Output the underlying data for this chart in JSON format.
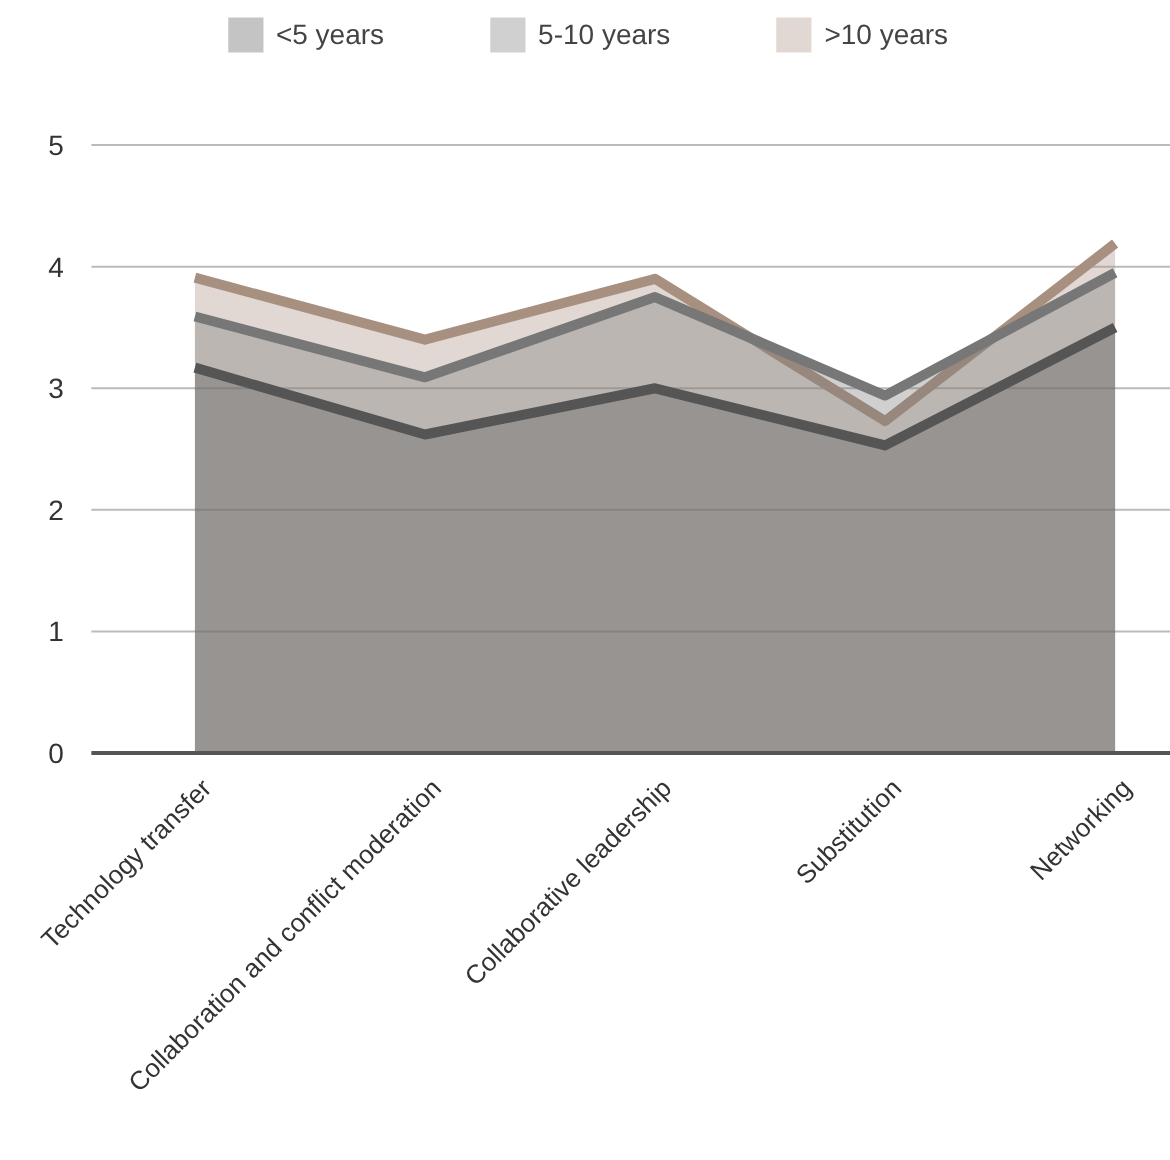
{
  "chart_data": {
    "type": "area",
    "categories": [
      "Technology transfer",
      "Collaboration and conflict moderation",
      "Collaborative leadership",
      "Substitution",
      "Networking"
    ],
    "series": [
      {
        "name": "<5 years",
        "color": "#555555",
        "values": [
          3.17,
          2.62,
          3.0,
          2.53,
          3.5
        ]
      },
      {
        "name": "5-10 years",
        "color": "#777777",
        "values": [
          3.59,
          3.09,
          3.75,
          2.94,
          3.95
        ]
      },
      {
        "name": ">10 years",
        "color": "#a89080",
        "values": [
          3.91,
          3.4,
          3.9,
          2.73,
          4.19
        ]
      }
    ],
    "ylim": [
      0,
      5
    ],
    "yticks": [
      0,
      1,
      2,
      3,
      4,
      5
    ],
    "grid": "y",
    "legend": "top"
  }
}
